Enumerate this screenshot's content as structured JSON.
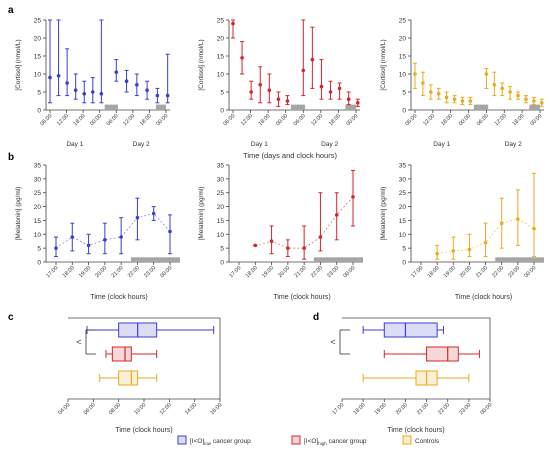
{
  "colors": {
    "low": "#3b3fd1",
    "high": "#d4252b",
    "ctrl": "#e8ac1c",
    "bar": "#a6a6a6",
    "axis": "#444444"
  },
  "panel_labels": {
    "a": "a",
    "b": "b",
    "c": "c",
    "d": "d"
  },
  "legend": {
    "low": "[I<O]low cancer group",
    "high": "[I<O]high cancer group",
    "ctrl": "Controls"
  },
  "chart_data": [
    {
      "id": "a",
      "type": "scatter",
      "variant": "errorbar",
      "ylabel": "[Cortisol] (nmol/L)",
      "xlabel": "Time (days and clock hours)",
      "ylim": [
        0,
        25
      ],
      "yticks": [
        0,
        5,
        10,
        15,
        20,
        25
      ],
      "xticks": [
        "06:00",
        "12:00",
        "18:00",
        "00:00",
        "06:00",
        "12:00",
        "18:00",
        "00:00"
      ],
      "day_labels": [
        "Day 1",
        "Day 2"
      ],
      "subplots": [
        {
          "group": "low",
          "day1": [
            [
              9.0,
              2,
              25
            ],
            [
              9.5,
              4,
              25
            ],
            [
              7.5,
              4,
              17
            ],
            [
              5.5,
              3,
              10
            ],
            [
              4.5,
              2,
              8
            ],
            [
              5,
              2,
              9
            ],
            [
              4.5,
              2,
              25
            ]
          ],
          "day2": [
            [
              10.5,
              8,
              14
            ],
            [
              8,
              5,
              11
            ],
            [
              7,
              4,
              10
            ],
            [
              5.5,
              3,
              8
            ],
            [
              4,
              2,
              6
            ],
            [
              4,
              2,
              15.5
            ]
          ]
        },
        {
          "group": "high",
          "day1": [
            [
              24,
              20,
              25
            ],
            [
              14.5,
              10,
              19
            ],
            [
              5,
              3,
              8
            ],
            [
              7,
              2,
              12
            ],
            [
              5.5,
              2,
              10
            ],
            [
              3,
              1,
              5
            ],
            [
              2.5,
              1.5,
              4
            ]
          ],
          "day2": [
            [
              11,
              4,
              25
            ],
            [
              14,
              6,
              23
            ],
            [
              6.5,
              3,
              14
            ],
            [
              5,
              3,
              8
            ],
            [
              6,
              3,
              7.5
            ],
            [
              3,
              1.5,
              5
            ],
            [
              2,
              1,
              3
            ]
          ]
        },
        {
          "group": "ctrl",
          "day1": [
            [
              10,
              6,
              13
            ],
            [
              7.5,
              4,
              10.5
            ],
            [
              5,
              3,
              7
            ],
            [
              4.5,
              3,
              6
            ],
            [
              3.5,
              2,
              5
            ],
            [
              3,
              2,
              4
            ],
            [
              2.5,
              1.5,
              3.5
            ],
            [
              2.5,
              1.5,
              3.5
            ]
          ],
          "day2": [
            [
              10,
              6,
              11.5
            ],
            [
              7,
              4,
              10.5
            ],
            [
              6,
              4,
              7.5
            ],
            [
              5,
              3,
              6.5
            ],
            [
              4,
              3,
              5
            ],
            [
              3,
              2,
              4
            ],
            [
              2.5,
              1.5,
              3.5
            ],
            [
              2,
              1,
              3
            ]
          ]
        }
      ]
    },
    {
      "id": "b",
      "type": "line",
      "variant": "errorbar",
      "ylabel": "[Melatonin] (pg/ml)",
      "xlabel": "Time (clock hours)",
      "ylim": [
        0,
        35
      ],
      "yticks": [
        0,
        5,
        10,
        15,
        20,
        25,
        30,
        35
      ],
      "xticks": [
        "17:00",
        "18:00",
        "19:00",
        "20:00",
        "21:00",
        "22:00",
        "23:00",
        "00:00"
      ],
      "subplots": [
        {
          "group": "low",
          "x": [
            0,
            1,
            2,
            3,
            4,
            5,
            6,
            7
          ],
          "points": [
            [
              5,
              2,
              9
            ],
            [
              9,
              4,
              14
            ],
            [
              6,
              3,
              10
            ],
            [
              8,
              3,
              14
            ],
            [
              9,
              3,
              16
            ],
            [
              16,
              8,
              23
            ],
            [
              17.5,
              15,
              20
            ],
            [
              11,
              3,
              17
            ]
          ]
        },
        {
          "group": "high",
          "x": [
            1,
            2,
            3,
            4,
            5,
            6,
            7
          ],
          "points": [
            [
              6,
              6,
              6
            ],
            [
              7.5,
              3,
              13
            ],
            [
              5,
              2,
              8
            ],
            [
              5,
              1,
              13
            ],
            [
              9,
              4,
              25
            ],
            [
              17,
              8,
              25
            ],
            [
              23.5,
              13,
              33
            ]
          ]
        },
        {
          "group": "ctrl",
          "x": [
            1,
            2,
            3,
            4,
            5,
            6,
            7
          ],
          "points": [
            [
              3,
              1,
              6
            ],
            [
              4,
              1,
              9
            ],
            [
              4.5,
              2,
              10
            ],
            [
              7,
              2,
              14
            ],
            [
              14,
              5,
              23
            ],
            [
              15.5,
              6,
              26
            ],
            [
              12,
              2,
              32
            ]
          ]
        }
      ]
    },
    {
      "id": "c",
      "type": "boxplot",
      "xlabel": "Time (clock hours)",
      "xticks": [
        "04:00",
        "06:00",
        "08:00",
        "10:00",
        "12:00",
        "14:00",
        "16:00"
      ],
      "xlim": [
        4,
        16
      ],
      "annotation": "<",
      "boxes": [
        {
          "group": "low",
          "min": 5.5,
          "q1": 8.0,
          "median": 9.5,
          "q3": 11.0,
          "max": 15.5
        },
        {
          "group": "high",
          "min": 7.0,
          "q1": 7.5,
          "median": 8.5,
          "q3": 9.0,
          "max": 11.0
        },
        {
          "group": "ctrl",
          "min": 6.5,
          "q1": 8.0,
          "median": 9.0,
          "q3": 9.5,
          "max": 11.0
        }
      ]
    },
    {
      "id": "d",
      "type": "boxplot",
      "xlabel": "Time (clock hours)",
      "xticks": [
        "17:00",
        "18:00",
        "19:00",
        "20:00",
        "21:00",
        "22:00",
        "23:00",
        "00:00"
      ],
      "xlim": [
        17,
        24
      ],
      "annotation": "<",
      "boxes": [
        {
          "group": "low",
          "min": 18.0,
          "q1": 19.0,
          "median": 20.0,
          "q3": 21.5,
          "max": 21.8
        },
        {
          "group": "high",
          "min": 19.0,
          "q1": 21.0,
          "median": 22.0,
          "q3": 22.5,
          "max": 23.5
        },
        {
          "group": "ctrl",
          "min": 18.0,
          "q1": 20.5,
          "median": 21.0,
          "q3": 21.5,
          "max": 23.0
        }
      ]
    }
  ]
}
